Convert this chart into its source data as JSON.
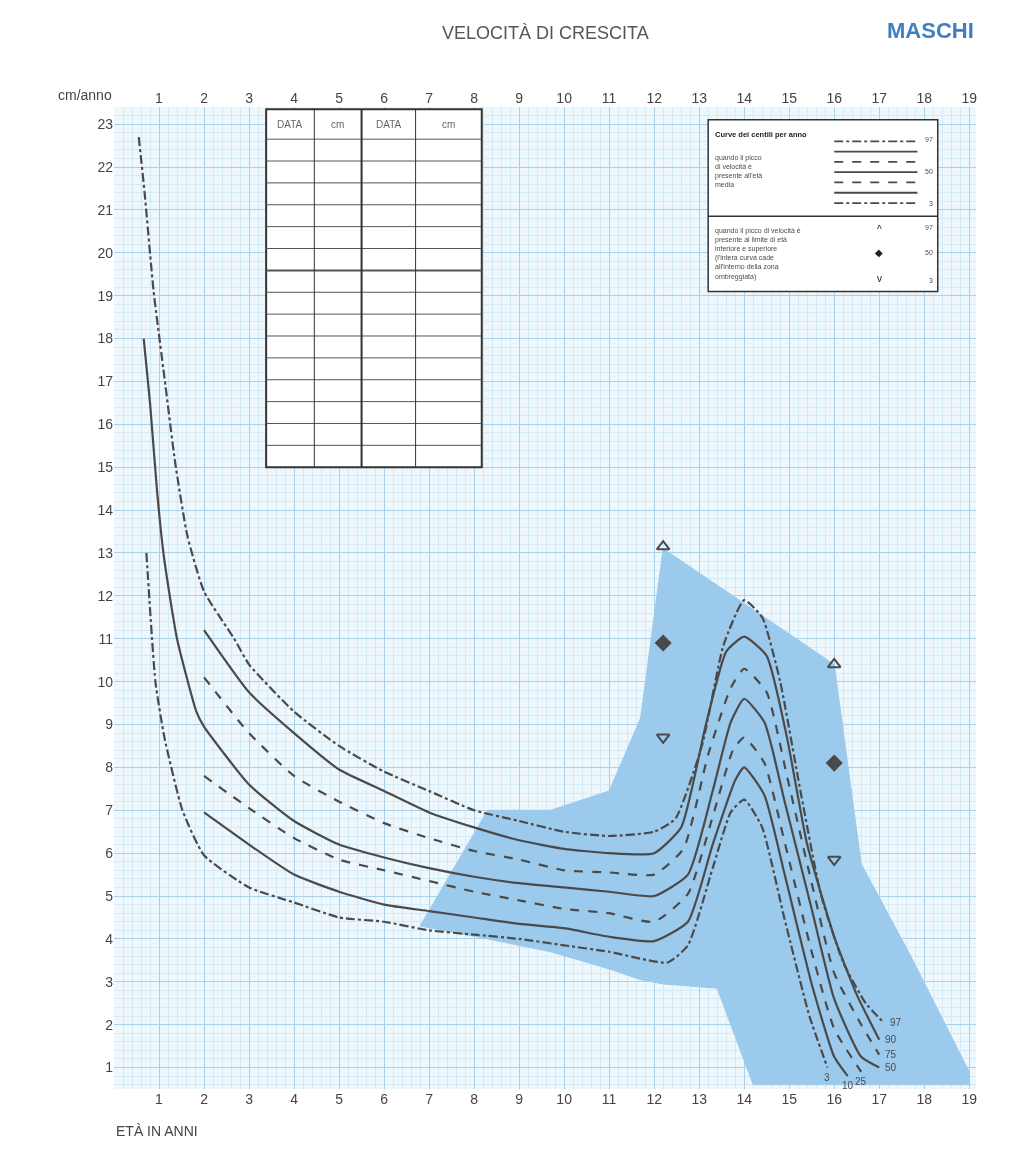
{
  "chart_data": {
    "type": "line",
    "title": "VELOCITÀ DI CRESCITA",
    "subtitle": "MASCHI",
    "xlabel": "ETÀ IN ANNI",
    "ylabel": "cm/anno",
    "xlim": [
      0,
      19.15
    ],
    "ylim": [
      0.5,
      23.4
    ],
    "xticks": [
      1,
      2,
      3,
      4,
      5,
      6,
      7,
      8,
      9,
      10,
      11,
      12,
      13,
      14,
      15,
      16,
      17,
      18,
      19
    ],
    "x2lim": [
      0,
      19.15
    ],
    "x2ticks": [
      1,
      2,
      3,
      4,
      5,
      6,
      7,
      8,
      9,
      10,
      11,
      12,
      13,
      14,
      15,
      16,
      17,
      18,
      19
    ],
    "yticks": [
      1,
      2,
      3,
      4,
      5,
      6,
      7,
      8,
      9,
      10,
      11,
      12,
      13,
      14,
      15,
      16,
      17,
      18,
      19,
      20,
      21,
      22,
      23
    ],
    "grid": true,
    "series": [
      {
        "type": "area",
        "color": "#9ccaed",
        "x": [
          6.8,
          8.3,
          9.7,
          11,
          11.7,
          12.2,
          13.4,
          14.2,
          16,
          16.6,
          17.7,
          19.0
        ],
        "values": [
          null,
          null,
          null,
          null,
          null,
          null,
          null,
          null,
          null,
          null,
          null,
          null
        ],
        "upper": [
          4.3,
          7.0,
          7.0,
          7.45,
          9.15,
          13.1,
          12.25,
          11.68,
          10.4,
          5.75,
          3.6,
          0.9
        ],
        "lower": [
          4.3,
          4.0,
          3.7,
          3.3,
          3.05,
          2.95,
          2.85,
          0.6,
          0.6,
          0.6,
          0.6,
          0.6
        ]
      },
      {
        "name": "97",
        "color": "#4a4a4a",
        "line_style": "dashdot",
        "x": [
          0.55,
          0.68,
          0.88,
          1.12,
          1.36,
          1.63,
          2,
          2.67,
          3,
          4,
          5,
          6,
          7,
          8,
          9,
          10,
          11,
          12,
          12.47,
          13.06,
          13.54,
          14,
          14.4,
          14.8,
          15.25,
          15.7,
          16.2,
          16.7,
          17.1
        ],
        "values": [
          22.7,
          21.4,
          19.1,
          17.1,
          15.1,
          13.4,
          12.1,
          11.0,
          10.4,
          9.3,
          8.5,
          7.9,
          7.45,
          7.0,
          6.75,
          6.5,
          6.4,
          6.5,
          6.8,
          8.5,
          10.85,
          11.9,
          11.5,
          10.0,
          7.45,
          5.05,
          3.45,
          2.5,
          2.05
        ]
      },
      {
        "name": "90",
        "color": "#4a4a4a",
        "line_style": "solid",
        "x": [
          2,
          3,
          4,
          5,
          6,
          7,
          8,
          9,
          10,
          11,
          12,
          12.6,
          13.15,
          13.6,
          14,
          14.5,
          14.95,
          15.4,
          16,
          16.5,
          17
        ],
        "values": [
          11.2,
          9.75,
          8.8,
          7.95,
          7.45,
          6.95,
          6.6,
          6.3,
          6.1,
          6.0,
          6.0,
          6.6,
          9.0,
          10.7,
          11.05,
          10.6,
          8.7,
          6.2,
          4.05,
          2.7,
          1.65
        ]
      },
      {
        "name": "75",
        "color": "#4a4a4a",
        "line_style": "dashed",
        "x": [
          2,
          3,
          4,
          5,
          6,
          7,
          8,
          9,
          10,
          11,
          12,
          12.65,
          13.2,
          13.7,
          14,
          14.5,
          14.95,
          15.5,
          16,
          16.6,
          17
        ],
        "values": [
          10.1,
          8.8,
          7.8,
          7.2,
          6.7,
          6.35,
          6.05,
          5.85,
          5.6,
          5.55,
          5.5,
          6.1,
          8.3,
          9.85,
          10.3,
          9.75,
          7.8,
          5.3,
          3.2,
          2.0,
          1.3
        ]
      },
      {
        "name": "50",
        "color": "#4a4a4a",
        "line_style": "solid",
        "x": [
          0.66,
          0.8,
          0.96,
          1.11,
          1.4,
          1.83,
          2,
          3,
          4,
          5,
          6,
          7,
          8,
          9,
          10,
          11,
          12,
          12.75,
          13.3,
          13.7,
          14,
          14.45,
          14.9,
          15.5,
          16,
          16.6,
          17
        ],
        "values": [
          18.0,
          16.5,
          14.4,
          12.9,
          11.0,
          9.3,
          8.95,
          7.6,
          6.75,
          6.2,
          5.9,
          5.65,
          5.45,
          5.3,
          5.2,
          5.1,
          5.0,
          5.5,
          7.45,
          9.05,
          9.6,
          9.05,
          7.2,
          4.7,
          2.6,
          1.25,
          1.0
        ]
      },
      {
        "name": "25",
        "color": "#4a4a4a",
        "line_style": "dashed",
        "x": [
          2,
          3,
          4,
          5,
          6,
          7,
          8,
          9,
          10,
          11,
          12,
          12.75,
          13.3,
          13.75,
          14,
          14.45,
          14.9,
          15.5,
          16,
          16.6
        ],
        "values": [
          7.8,
          7.05,
          6.35,
          5.85,
          5.6,
          5.35,
          5.1,
          4.9,
          4.7,
          4.6,
          4.4,
          5.05,
          6.85,
          8.4,
          8.7,
          8.1,
          6.25,
          3.7,
          1.9,
          0.9
        ]
      },
      {
        "name": "10",
        "color": "#4a4a4a",
        "line_style": "solid",
        "x": [
          2,
          3,
          4,
          5,
          6,
          7,
          8,
          9,
          10,
          11,
          12,
          12.75,
          13.3,
          13.8,
          14,
          14.45,
          14.9,
          15.5,
          16,
          16.3
        ],
        "values": [
          6.95,
          6.2,
          5.5,
          5.1,
          4.8,
          4.65,
          4.5,
          4.35,
          4.25,
          4.05,
          3.95,
          4.4,
          6.2,
          7.7,
          8.0,
          7.35,
          5.5,
          2.95,
          1.25,
          0.8
        ]
      },
      {
        "name": "3",
        "color": "#4a4a4a",
        "line_style": "dashdot",
        "x": [
          0.72,
          0.92,
          1.12,
          1.52,
          2,
          3,
          4,
          5,
          6,
          7,
          8,
          9,
          10,
          11,
          12.3,
          12.75,
          13.3,
          13.7,
          14,
          14.4,
          14.9,
          15.45,
          15.85
        ],
        "values": [
          13.0,
          10.0,
          8.7,
          7.0,
          5.95,
          5.2,
          4.85,
          4.5,
          4.4,
          4.2,
          4.1,
          4.0,
          3.85,
          3.7,
          3.45,
          3.85,
          5.65,
          6.95,
          7.25,
          6.6,
          4.45,
          2.2,
          1.0
        ]
      },
      {
        "type": "scatter",
        "marker": "triangle",
        "color": "#4a4a4a",
        "x": [
          12.2,
          16
        ],
        "values": [
          13.15,
          10.4
        ]
      },
      {
        "type": "scatter",
        "marker": "diamond",
        "color": "#4a4a4a",
        "x": [
          12.2,
          16
        ],
        "values": [
          10.9,
          8.1
        ]
      },
      {
        "type": "scatter",
        "marker": "triangle",
        "color": "#4a4a4a",
        "x": [
          12.2,
          16
        ],
        "values": [
          8.7,
          5.85
        ]
      }
    ],
    "annotations": [
      "DATA",
      "cm",
      "DATA",
      "cm",
      "Curve dei centili per anno",
      "quando il picco di velocità è presente all'età media",
      "97",
      "50",
      "3",
      "quando il picco di velocità è presente al limite di età inferiore e superiore (l'intera curva cade all'interno della zona ombreggiata)",
      "^",
      "◆",
      "v",
      "97",
      "50",
      "3"
    ]
  }
}
